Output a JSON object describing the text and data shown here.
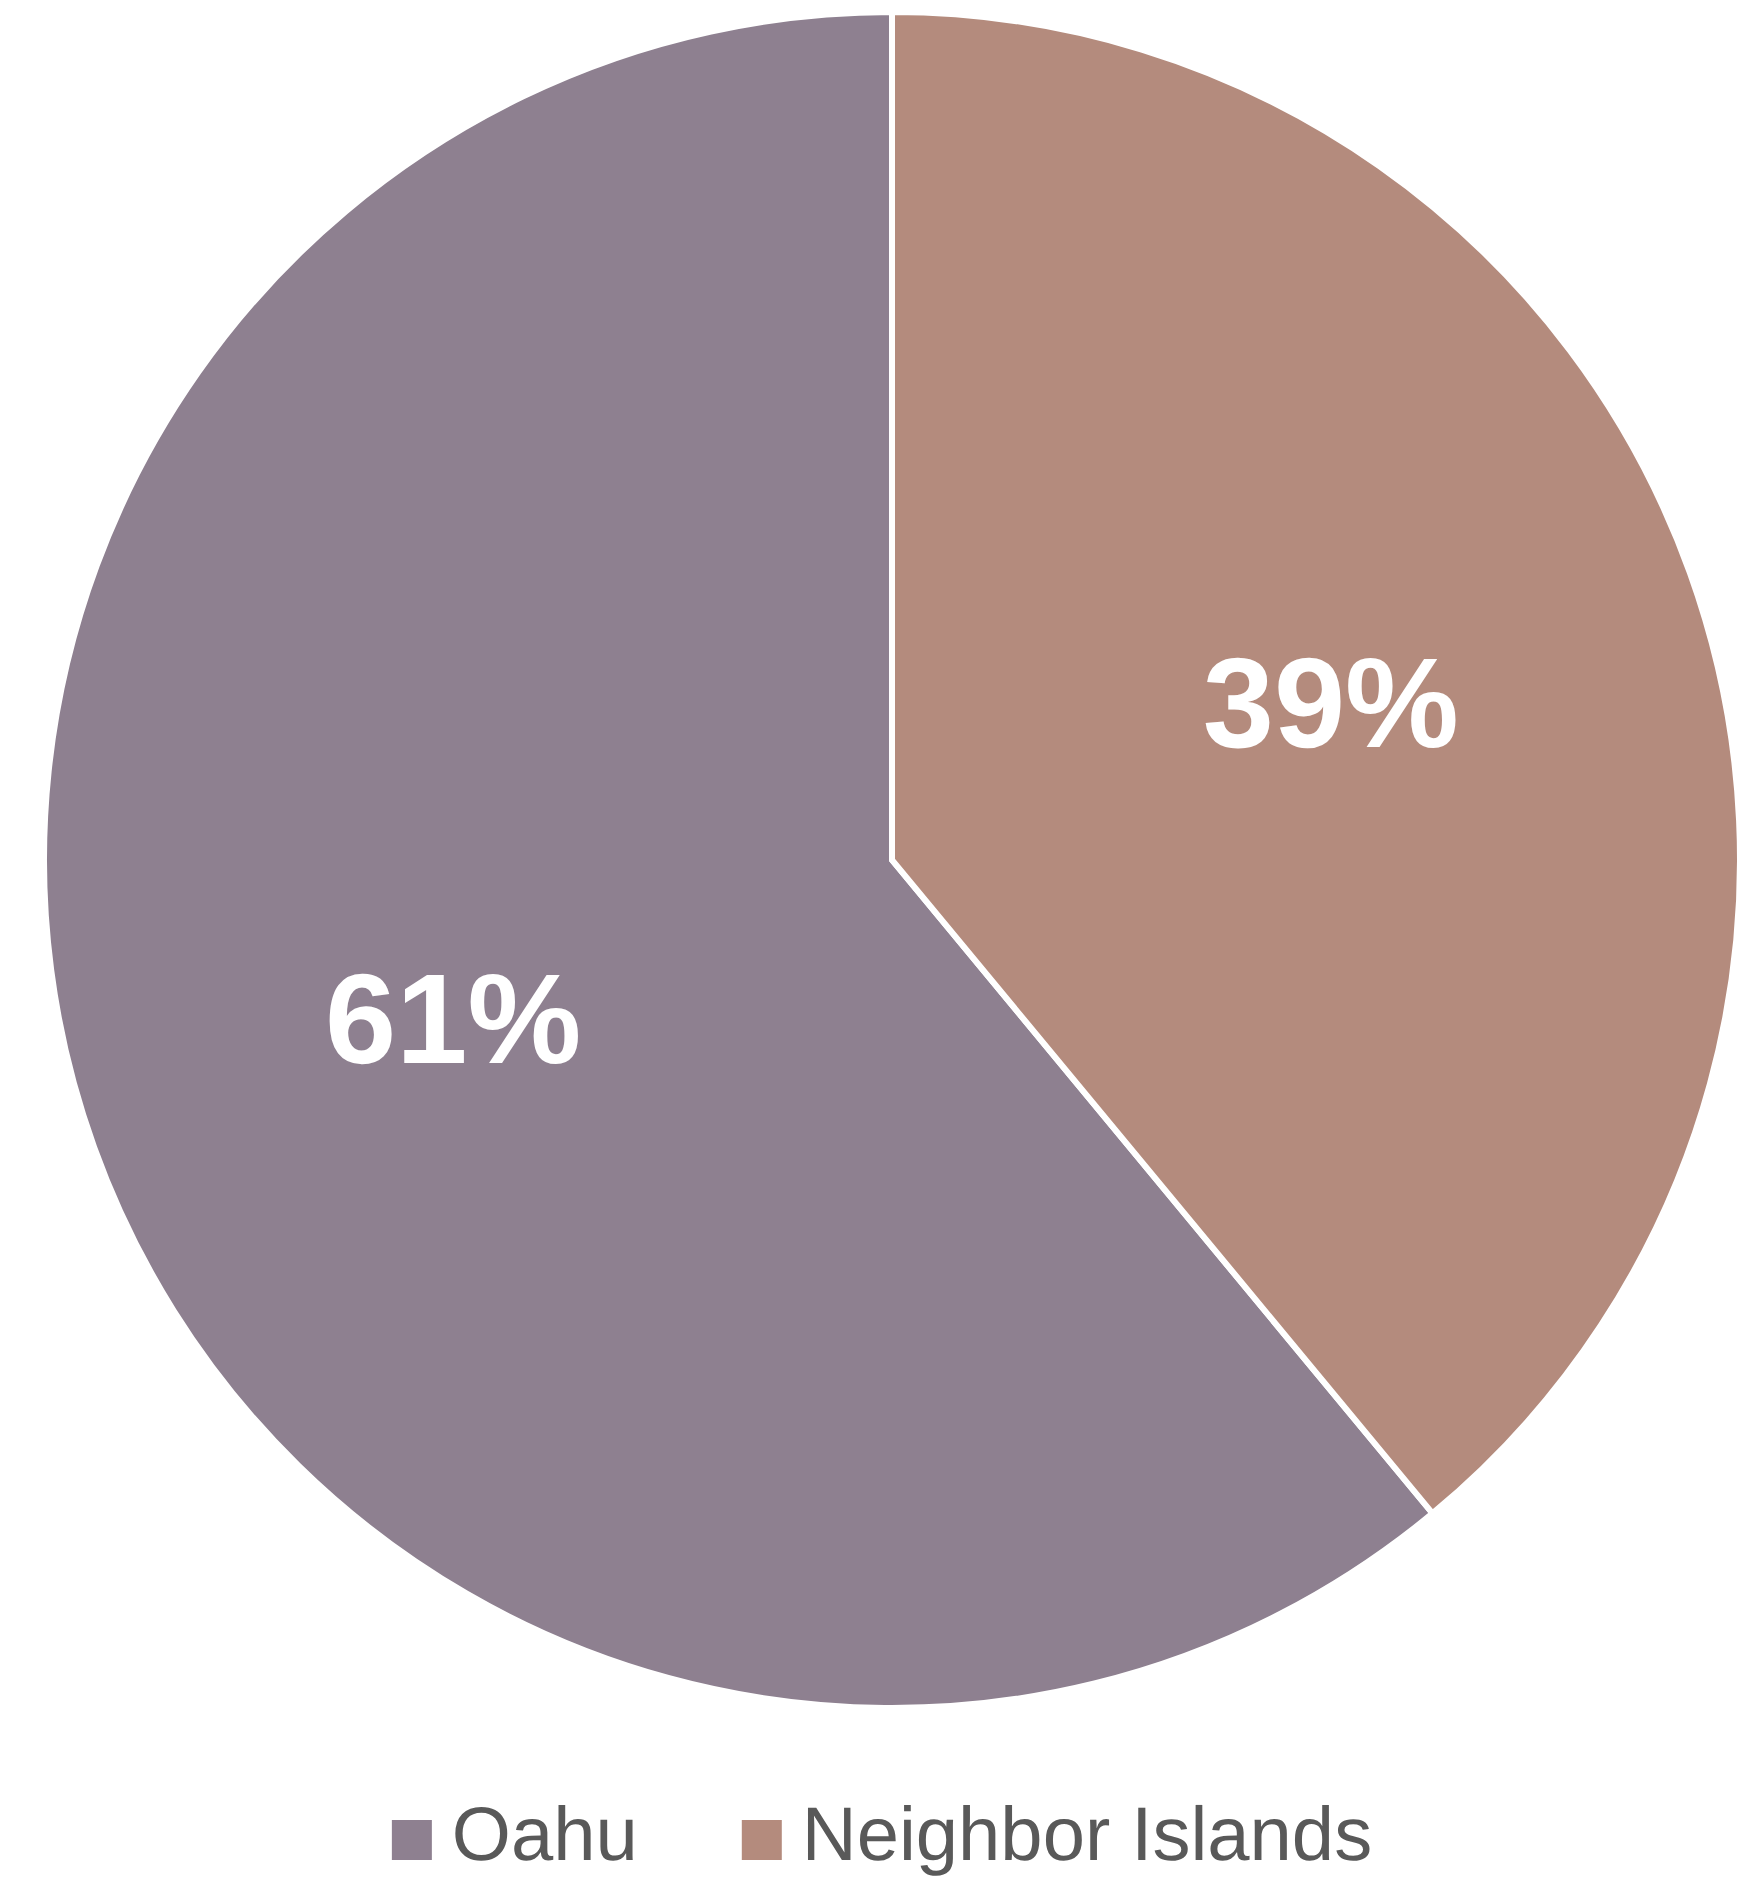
{
  "chart_data": {
    "type": "pie",
    "categories": [
      "Oahu",
      "Neighbor Islands"
    ],
    "values": [
      61,
      39
    ],
    "value_labels": [
      "61%",
      "39%"
    ],
    "colors": [
      "#8e8090",
      "#b48b7d"
    ],
    "legend": "bottom"
  }
}
